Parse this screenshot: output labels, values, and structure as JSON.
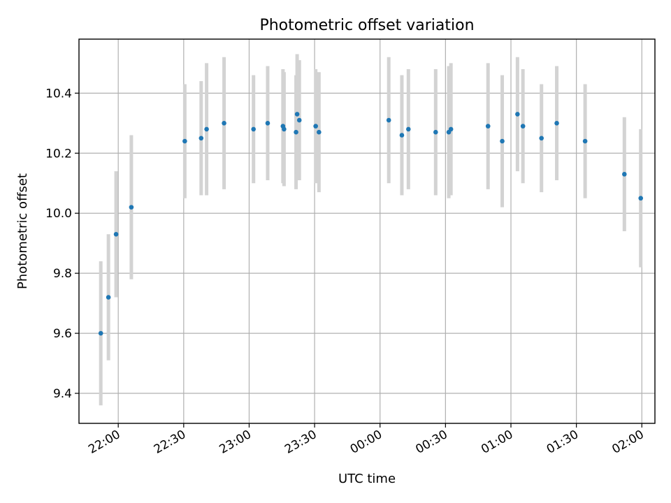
{
  "chart_data": {
    "type": "scatter",
    "title": "Photometric offset variation",
    "xlabel": "UTC time",
    "ylabel": "Photometric offset",
    "x_unit": "UTC date-time",
    "xlim": [
      "2023-01-01T21:42:00",
      "2023-01-02T02:06:00"
    ],
    "ylim": [
      9.3,
      10.58
    ],
    "x_ticks": [
      {
        "time": "2023-01-01T22:00:00",
        "label": "22:00"
      },
      {
        "time": "2023-01-01T22:30:00",
        "label": "22:30"
      },
      {
        "time": "2023-01-01T23:00:00",
        "label": "23:00"
      },
      {
        "time": "2023-01-01T23:30:00",
        "label": "23:30"
      },
      {
        "time": "2023-01-02T00:00:00",
        "label": "00:00"
      },
      {
        "time": "2023-01-02T00:30:00",
        "label": "00:30"
      },
      {
        "time": "2023-01-02T01:00:00",
        "label": "01:00"
      },
      {
        "time": "2023-01-02T01:30:00",
        "label": "01:30"
      },
      {
        "time": "2023-01-02T02:00:00",
        "label": "02:00"
      }
    ],
    "y_ticks": [
      {
        "value": 9.4,
        "label": "9.4"
      },
      {
        "value": 9.6,
        "label": "9.6"
      },
      {
        "value": 9.8,
        "label": "9.8"
      },
      {
        "value": 10.0,
        "label": "10.0"
      },
      {
        "value": 10.2,
        "label": "10.2"
      },
      {
        "value": 10.4,
        "label": "10.4"
      }
    ],
    "grid": true,
    "colors": {
      "point": "#1f77b4",
      "errorbar": "#d3d3d3"
    },
    "points": [
      {
        "t": "2023-01-01T21:52:00",
        "y": 9.6,
        "yerr": 0.24
      },
      {
        "t": "2023-01-01T21:55:30",
        "y": 9.72,
        "yerr": 0.21
      },
      {
        "t": "2023-01-01T21:59:00",
        "y": 9.93,
        "yerr": 0.21
      },
      {
        "t": "2023-01-01T22:06:00",
        "y": 10.02,
        "yerr": 0.24
      },
      {
        "t": "2023-01-01T22:30:30",
        "y": 10.24,
        "yerr": 0.19
      },
      {
        "t": "2023-01-01T22:38:00",
        "y": 10.25,
        "yerr": 0.19
      },
      {
        "t": "2023-01-01T22:40:30",
        "y": 10.28,
        "yerr": 0.22
      },
      {
        "t": "2023-01-01T22:48:30",
        "y": 10.3,
        "yerr": 0.22
      },
      {
        "t": "2023-01-01T23:02:00",
        "y": 10.28,
        "yerr": 0.18
      },
      {
        "t": "2023-01-01T23:08:30",
        "y": 10.3,
        "yerr": 0.19
      },
      {
        "t": "2023-01-01T23:15:30",
        "y": 10.29,
        "yerr": 0.19
      },
      {
        "t": "2023-01-01T23:16:00",
        "y": 10.28,
        "yerr": 0.19
      },
      {
        "t": "2023-01-01T23:21:30",
        "y": 10.27,
        "yerr": 0.19
      },
      {
        "t": "2023-01-01T23:22:00",
        "y": 10.33,
        "yerr": 0.2
      },
      {
        "t": "2023-01-01T23:23:00",
        "y": 10.31,
        "yerr": 0.2
      },
      {
        "t": "2023-01-01T23:30:30",
        "y": 10.29,
        "yerr": 0.19
      },
      {
        "t": "2023-01-01T23:32:00",
        "y": 10.27,
        "yerr": 0.2
      },
      {
        "t": "2023-01-02T00:04:00",
        "y": 10.31,
        "yerr": 0.21
      },
      {
        "t": "2023-01-02T00:10:00",
        "y": 10.26,
        "yerr": 0.2
      },
      {
        "t": "2023-01-02T00:13:00",
        "y": 10.28,
        "yerr": 0.2
      },
      {
        "t": "2023-01-02T00:25:30",
        "y": 10.27,
        "yerr": 0.21
      },
      {
        "t": "2023-01-02T00:31:30",
        "y": 10.27,
        "yerr": 0.22
      },
      {
        "t": "2023-01-02T00:32:30",
        "y": 10.28,
        "yerr": 0.22
      },
      {
        "t": "2023-01-02T00:49:30",
        "y": 10.29,
        "yerr": 0.21
      },
      {
        "t": "2023-01-02T00:56:00",
        "y": 10.24,
        "yerr": 0.22
      },
      {
        "t": "2023-01-02T01:03:00",
        "y": 10.33,
        "yerr": 0.19
      },
      {
        "t": "2023-01-02T01:05:30",
        "y": 10.29,
        "yerr": 0.19
      },
      {
        "t": "2023-01-02T01:14:00",
        "y": 10.25,
        "yerr": 0.18
      },
      {
        "t": "2023-01-02T01:21:00",
        "y": 10.3,
        "yerr": 0.19
      },
      {
        "t": "2023-01-02T01:34:00",
        "y": 10.24,
        "yerr": 0.19
      },
      {
        "t": "2023-01-02T01:52:00",
        "y": 10.13,
        "yerr": 0.19
      },
      {
        "t": "2023-01-02T01:59:30",
        "y": 10.05,
        "yerr": 0.23
      }
    ]
  }
}
